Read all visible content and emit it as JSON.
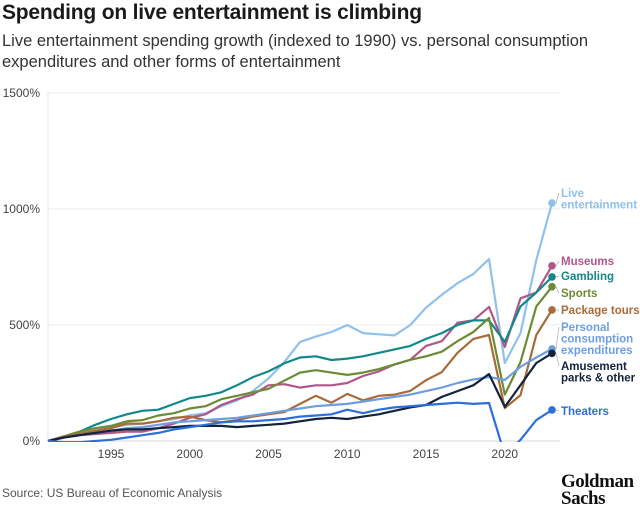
{
  "title": "Spending on live entertainment is climbing",
  "subtitle": "Live entertainment spending growth (indexed to 1990) vs. personal consumption expenditures and other forms of entertainment",
  "source": "Source: US Bureau of Economic Analysis",
  "logo": "Goldman Sachs",
  "chart_data": {
    "type": "line",
    "title": "Spending on live entertainment is climbing",
    "xlabel": "",
    "ylabel": "",
    "xlim": [
      1991,
      2023
    ],
    "ylim": [
      0,
      1500
    ],
    "grid": "horizontal",
    "legend": "right (end-of-line labels)",
    "y_ticks": [
      "0%",
      "500%",
      "1000%",
      "1500%"
    ],
    "x_ticks": [
      "1995",
      "2000",
      "2005",
      "2010",
      "2015",
      "2020"
    ],
    "x": [
      1991,
      1992,
      1993,
      1994,
      1995,
      1996,
      1997,
      1998,
      1999,
      2000,
      2001,
      2002,
      2003,
      2004,
      2005,
      2006,
      2007,
      2008,
      2009,
      2010,
      2011,
      2012,
      2013,
      2014,
      2015,
      2016,
      2017,
      2018,
      2019,
      2020,
      2021,
      2022,
      2023
    ],
    "series": [
      {
        "name": "Live entertainment",
        "color": "#8fc1ea",
        "values": [
          0,
          15,
          25,
          40,
          60,
          70,
          75,
          85,
          95,
          110,
          120,
          150,
          175,
          215,
          270,
          340,
          427,
          450,
          470,
          500,
          465,
          460,
          455,
          500,
          575,
          630,
          680,
          720,
          784,
          336,
          465,
          780,
          1026
        ]
      },
      {
        "name": "Museums",
        "color": "#b0578a",
        "values": [
          0,
          15,
          25,
          30,
          35,
          40,
          40,
          55,
          75,
          100,
          115,
          155,
          180,
          200,
          240,
          245,
          230,
          240,
          240,
          250,
          280,
          300,
          330,
          350,
          410,
          430,
          510,
          520,
          578,
          405,
          615,
          640,
          755
        ]
      },
      {
        "name": "Gambling",
        "color": "#11898a",
        "values": [
          0,
          20,
          40,
          70,
          95,
          115,
          130,
          135,
          160,
          185,
          195,
          210,
          240,
          275,
          300,
          335,
          360,
          365,
          349,
          355,
          365,
          380,
          395,
          410,
          440,
          465,
          500,
          520,
          520,
          427,
          580,
          640,
          707
        ]
      },
      {
        "name": "Sports",
        "color": "#6b8b35",
        "values": [
          0,
          20,
          40,
          55,
          65,
          85,
          90,
          110,
          120,
          140,
          150,
          180,
          195,
          210,
          225,
          260,
          295,
          305,
          295,
          285,
          295,
          310,
          330,
          350,
          365,
          385,
          430,
          470,
          530,
          200,
          340,
          580,
          665
        ]
      },
      {
        "name": "Package tours",
        "color": "#a86b38",
        "values": [
          0,
          20,
          30,
          45,
          55,
          75,
          75,
          85,
          100,
          105,
          90,
          80,
          90,
          105,
          115,
          125,
          160,
          195,
          165,
          203,
          175,
          195,
          200,
          216,
          262,
          297,
          380,
          440,
          457,
          142,
          198,
          457,
          565
        ]
      },
      {
        "name": "Personal consumption expenditures",
        "color": "#6e9ee2",
        "values": [
          0,
          15,
          25,
          35,
          45,
          55,
          60,
          70,
          80,
          85,
          90,
          95,
          100,
          110,
          120,
          130,
          140,
          150,
          155,
          160,
          170,
          180,
          190,
          200,
          215,
          230,
          250,
          265,
          276,
          263,
          320,
          360,
          397
        ]
      },
      {
        "name": "Amusement parks & other",
        "color": "#13233d",
        "values": [
          0,
          15,
          25,
          35,
          45,
          50,
          50,
          55,
          60,
          65,
          65,
          65,
          60,
          65,
          70,
          75,
          85,
          95,
          100,
          95,
          105,
          115,
          130,
          145,
          155,
          190,
          215,
          240,
          289,
          147,
          241,
          336,
          378
        ]
      },
      {
        "name": "Theaters",
        "color": "#2c6fd9",
        "values": [
          0,
          -5,
          -5,
          0,
          5,
          15,
          25,
          35,
          50,
          60,
          70,
          80,
          85,
          85,
          90,
          95,
          105,
          110,
          115,
          135,
          120,
          135,
          145,
          150,
          155,
          160,
          165,
          160,
          164,
          -60,
          5,
          90,
          134
        ]
      }
    ]
  }
}
